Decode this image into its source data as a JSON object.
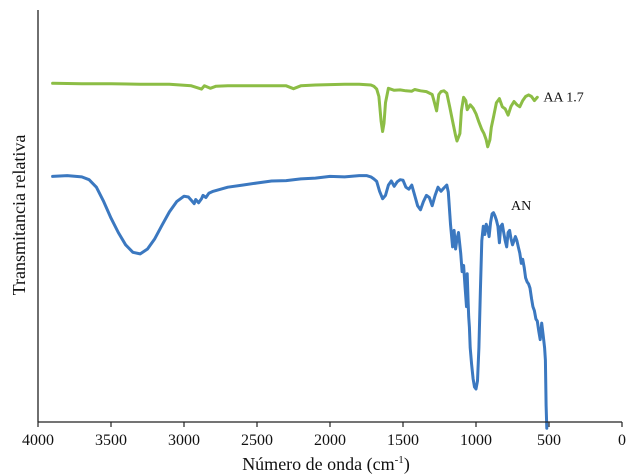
{
  "chart_data": {
    "type": "line",
    "xlabel_main": "Número de onda (cm",
    "xlabel_sup": "-1",
    "xlabel_end": ")",
    "ylabel": "Transmitancia relativa",
    "xlim": [
      4000,
      0
    ],
    "x_reversed": true,
    "ylim": [
      0,
      100
    ],
    "grid": false,
    "x_ticks": [
      "4000",
      "3500",
      "3000",
      "2500",
      "2000",
      "1500",
      "1000",
      "500",
      "0"
    ],
    "x_tick_values": [
      4000,
      3500,
      3000,
      2500,
      2000,
      1500,
      1000,
      500,
      0
    ],
    "series": [
      {
        "name": "AA 1.7",
        "color": "#8cbd45",
        "x": [
          3900,
          3700,
          3500,
          3300,
          3100,
          2950,
          2880,
          2860,
          2820,
          2780,
          2700,
          2500,
          2300,
          2250,
          2200,
          2100,
          1900,
          1800,
          1720,
          1700,
          1680,
          1665,
          1650,
          1640,
          1630,
          1620,
          1600,
          1560,
          1520,
          1480,
          1440,
          1420,
          1380,
          1340,
          1300,
          1290,
          1270,
          1255,
          1240,
          1220,
          1200,
          1180,
          1160,
          1140,
          1130,
          1110,
          1100,
          1085,
          1070,
          1060,
          1040,
          1020,
          1000,
          980,
          960,
          945,
          930,
          920,
          905,
          895,
          880,
          860,
          840,
          820,
          800,
          780,
          760,
          740,
          720,
          700,
          680,
          660,
          640,
          620,
          600,
          580
        ],
        "y": [
          82.2,
          82.1,
          82.1,
          82.0,
          82.0,
          81.6,
          80.8,
          81.6,
          81.0,
          81.5,
          81.6,
          81.6,
          81.6,
          80.9,
          81.6,
          81.8,
          82.0,
          82.0,
          81.8,
          81.5,
          80.8,
          79.0,
          73.0,
          70.5,
          72.5,
          77.5,
          81.0,
          80.5,
          80.6,
          80.4,
          80.3,
          80.7,
          80.4,
          80.2,
          79.5,
          78.2,
          75.5,
          79.5,
          80.2,
          80.4,
          79.8,
          76.5,
          73.0,
          69.5,
          68.2,
          70.0,
          75.5,
          78.8,
          78.0,
          75.8,
          77.0,
          76.2,
          74.8,
          72.8,
          71.0,
          70.0,
          68.5,
          66.8,
          68.5,
          71.5,
          74.0,
          77.5,
          78.5,
          76.5,
          76.0,
          74.5,
          76.6,
          77.8,
          77.0,
          76.5,
          78.0,
          79.0,
          79.4,
          79.0,
          78.0,
          78.8
        ]
      },
      {
        "name": "AN",
        "color": "#3b78c0",
        "x": [
          3900,
          3800,
          3700,
          3650,
          3600,
          3550,
          3500,
          3450,
          3400,
          3350,
          3300,
          3250,
          3200,
          3150,
          3100,
          3050,
          3000,
          2970,
          2950,
          2930,
          2920,
          2900,
          2880,
          2870,
          2850,
          2830,
          2800,
          2700,
          2600,
          2500,
          2400,
          2300,
          2200,
          2100,
          2000,
          1900,
          1800,
          1750,
          1720,
          1700,
          1680,
          1660,
          1640,
          1620,
          1600,
          1580,
          1560,
          1540,
          1520,
          1500,
          1480,
          1460,
          1440,
          1420,
          1400,
          1380,
          1360,
          1340,
          1320,
          1300,
          1280,
          1260,
          1240,
          1220,
          1200,
          1190,
          1175,
          1160,
          1150,
          1140,
          1130,
          1120,
          1105,
          1095,
          1085,
          1075,
          1065,
          1060,
          1055,
          1050,
          1045,
          1040,
          1030,
          1020,
          1010,
          1000,
          990,
          980,
          970,
          960,
          950,
          940,
          930,
          920,
          910,
          900,
          890,
          880,
          870,
          860,
          850,
          840,
          830,
          820,
          810,
          800,
          790,
          780,
          770,
          760,
          750,
          740,
          730,
          720,
          710,
          700,
          690,
          680,
          670,
          660,
          650,
          640,
          630,
          620,
          610,
          600,
          590,
          580,
          570,
          560,
          550,
          540,
          530,
          525,
          520,
          515
        ],
        "y": [
          59.6,
          59.8,
          59.5,
          58.8,
          57.0,
          53.5,
          49.5,
          46.0,
          43.0,
          41.2,
          40.8,
          42.0,
          44.5,
          47.8,
          51.0,
          53.5,
          54.8,
          54.6,
          53.8,
          53.0,
          54.0,
          53.2,
          54.2,
          55.0,
          54.5,
          55.5,
          56.0,
          57.0,
          57.5,
          58.0,
          58.5,
          58.6,
          59.0,
          59.2,
          59.6,
          59.5,
          59.8,
          59.8,
          59.5,
          59.0,
          58.4,
          56.0,
          54.2,
          55.0,
          57.5,
          58.5,
          57.2,
          58.3,
          58.8,
          58.7,
          57.0,
          56.5,
          57.5,
          55.0,
          52.5,
          51.5,
          53.5,
          55.0,
          54.5,
          52.5,
          55.0,
          57.0,
          56.0,
          56.8,
          57.5,
          55.8,
          48.0,
          42.5,
          46.5,
          42.0,
          44.5,
          46.0,
          41.0,
          36.5,
          38.0,
          33.0,
          28.0,
          36.0,
          30.0,
          25.5,
          23.0,
          18.0,
          14.0,
          10.5,
          8.5,
          8.0,
          10.0,
          18.0,
          32.0,
          44.0,
          47.5,
          45.5,
          48.0,
          47.0,
          45.0,
          48.5,
          50.5,
          50.8,
          50.0,
          49.0,
          47.5,
          43.5,
          47.5,
          48.0,
          46.0,
          44.0,
          42.5,
          46.0,
          46.5,
          44.5,
          43.0,
          44.0,
          45.0,
          44.0,
          42.5,
          41.0,
          38.5,
          39.5,
          37.5,
          35.0,
          34.0,
          33.5,
          32.5,
          30.0,
          28.0,
          27.0,
          25.0,
          24.5,
          22.0,
          20.0,
          24.0,
          21.0,
          18.0,
          15.0,
          4.0,
          -1.5
        ]
      }
    ]
  }
}
